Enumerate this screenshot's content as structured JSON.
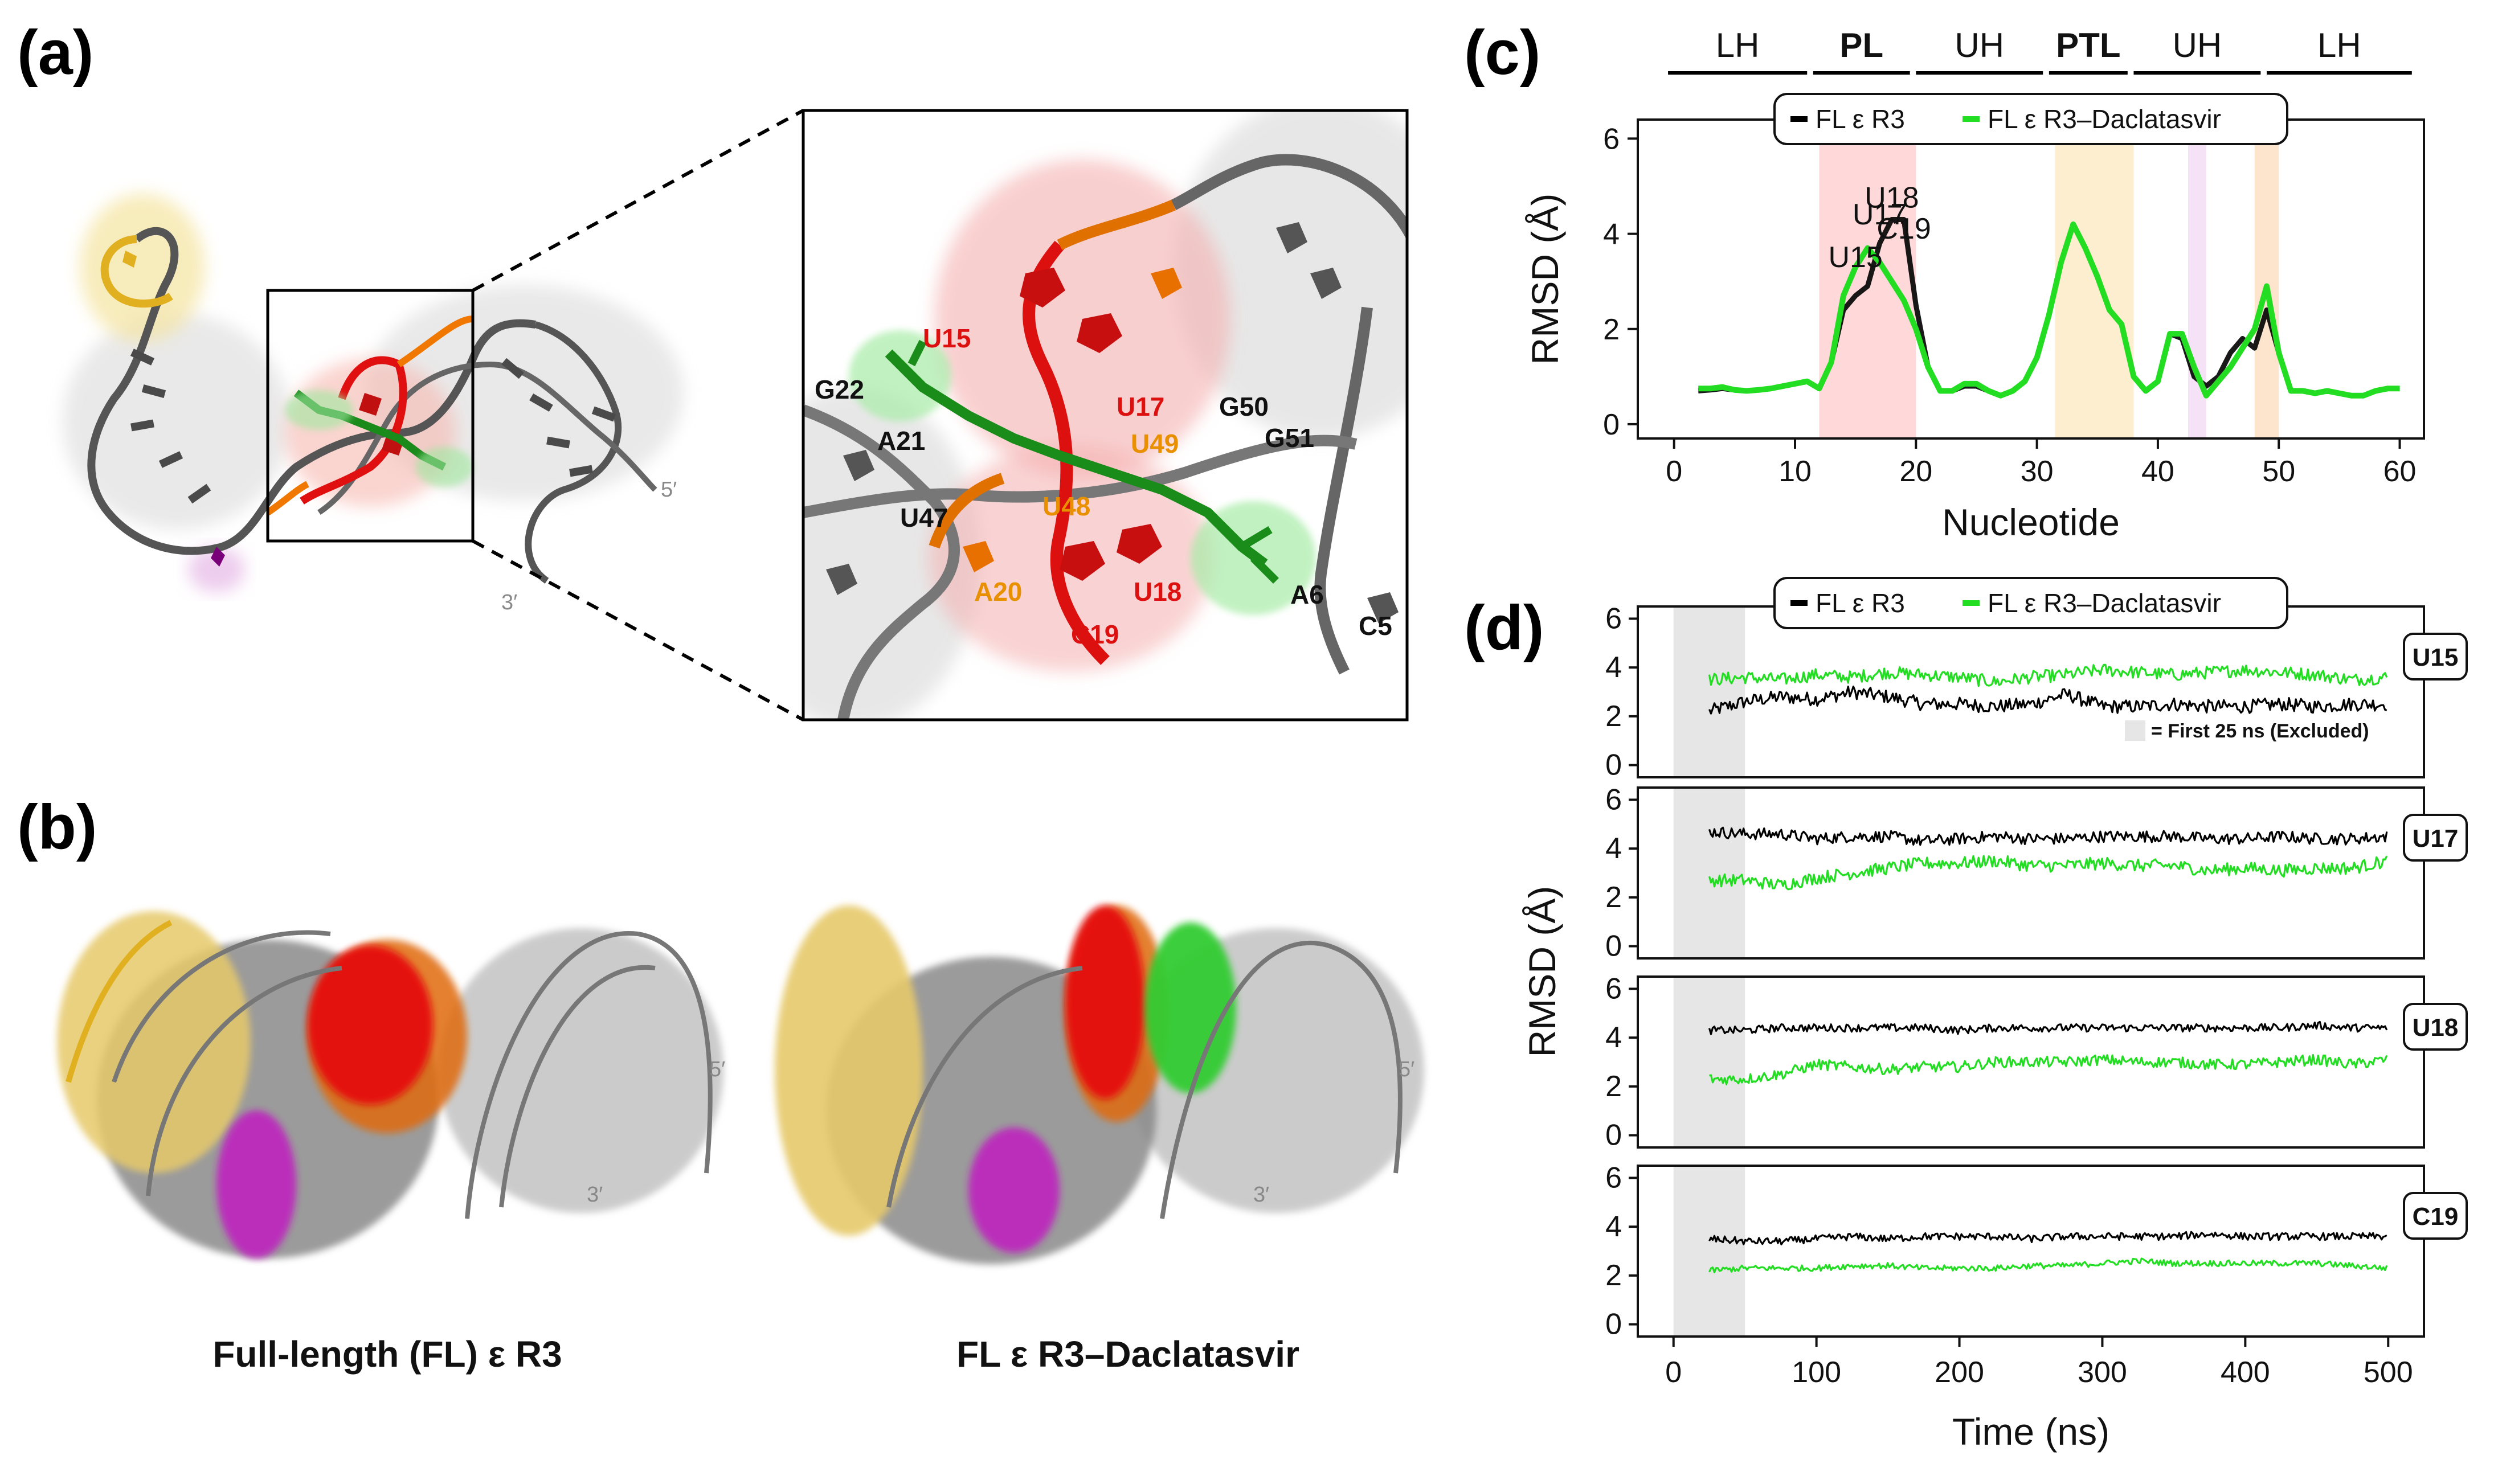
{
  "colors": {
    "fl": "#000000",
    "dacla": "#22dd22",
    "pl": "#ff2020",
    "ptl": "#f0b400",
    "exclude": "#e6e6e6"
  },
  "panel_a": {
    "label": "(a)",
    "end5": "5′",
    "end3": "3′",
    "zoom_labels": {
      "u15": "U15",
      "g22": "G22",
      "a21": "A21",
      "u47": "U47",
      "u17": "U17",
      "u49": "U49",
      "u48": "U48",
      "g50": "G50",
      "g51": "G51",
      "a20": "A20",
      "u18": "U18",
      "c19": "C19",
      "a6": "A6",
      "c5": "C5"
    }
  },
  "panel_b": {
    "label": "(b)",
    "caption_left": "Full-length (FL) ε R3",
    "caption_right": "FL ε R3–Daclatasvir",
    "end5_left": "5′",
    "end3_left": "3′",
    "end5_right": "5′",
    "end3_right": "3′"
  },
  "panel_c": {
    "label": "(c)"
  },
  "panel_d": {
    "label": "(d)",
    "exclude_note": "= First 25 ns (Excluded)"
  },
  "chart_data": [
    {
      "id": "c",
      "type": "line",
      "xlabel": "Nucleotide",
      "ylabel": "RMSD (Å)",
      "xlim": [
        -3,
        62
      ],
      "ylim": [
        -0.3,
        6.4
      ],
      "xticks": [
        0,
        10,
        20,
        30,
        40,
        50,
        60
      ],
      "yticks": [
        0,
        2,
        4,
        6
      ],
      "legend": [
        "FL ε R3",
        "FL ε R3–Daclatasvir"
      ],
      "legend_position": "top-center",
      "regions": [
        {
          "label": "LH",
          "start": -0.5,
          "end": 11
        },
        {
          "label": "PL",
          "start": 11.5,
          "end": 19.5
        },
        {
          "label": "UH",
          "start": 20,
          "end": 30.5
        },
        {
          "label": "PTL",
          "start": 31,
          "end": 37.5
        },
        {
          "label": "UH",
          "start": 38,
          "end": 48.5
        },
        {
          "label": "LH",
          "start": 49,
          "end": 61
        }
      ],
      "shaded": [
        {
          "start": 12,
          "end": 20,
          "color": "#ffd2d2"
        },
        {
          "start": 31.5,
          "end": 38,
          "color": "#fdebc8"
        },
        {
          "start": 42.5,
          "end": 44,
          "color": "#f5ddf5"
        },
        {
          "start": 48,
          "end": 50,
          "color": "#fde0c4"
        }
      ],
      "annotations": [
        {
          "text": "U15",
          "x": 15,
          "y": 3.3
        },
        {
          "text": "U17",
          "x": 17,
          "y": 4.2
        },
        {
          "text": "U18",
          "x": 18,
          "y": 4.55
        },
        {
          "text": "C19",
          "x": 19,
          "y": 3.9
        }
      ],
      "x": [
        2,
        3,
        4,
        5,
        6,
        7,
        8,
        9,
        10,
        11,
        12,
        13,
        14,
        15,
        16,
        17,
        18,
        19,
        20,
        21,
        22,
        23,
        24,
        25,
        26,
        27,
        28,
        29,
        30,
        31,
        32,
        33,
        34,
        35,
        36,
        37,
        38,
        39,
        40,
        41,
        42,
        43,
        44,
        45,
        46,
        47,
        48,
        49,
        50,
        51,
        52,
        53,
        54,
        55,
        56,
        57,
        58,
        59,
        60
      ],
      "series": [
        {
          "name": "FL ε R3",
          "values": [
            0.7,
            0.72,
            0.75,
            0.72,
            0.7,
            0.72,
            0.75,
            0.8,
            0.85,
            0.9,
            0.75,
            1.3,
            2.4,
            2.7,
            2.9,
            3.8,
            4.3,
            4.3,
            2.5,
            1.2,
            0.7,
            0.7,
            0.8,
            0.8,
            0.7,
            0.6,
            0.7,
            0.9,
            1.4,
            2.3,
            3.4,
            4.2,
            3.7,
            3.1,
            2.4,
            2.1,
            1.0,
            0.7,
            0.9,
            1.9,
            1.8,
            1.0,
            0.8,
            1.0,
            1.5,
            1.8,
            1.6,
            2.4,
            1.5,
            0.7,
            0.7,
            0.65,
            0.7,
            0.65,
            0.6,
            0.6,
            0.7,
            0.75,
            0.75
          ]
        },
        {
          "name": "FL ε R3–Daclatasvir",
          "values": [
            0.75,
            0.75,
            0.78,
            0.72,
            0.7,
            0.72,
            0.75,
            0.8,
            0.85,
            0.9,
            0.75,
            1.3,
            2.7,
            3.3,
            3.7,
            3.4,
            3.0,
            2.6,
            2.0,
            1.2,
            0.7,
            0.7,
            0.85,
            0.85,
            0.7,
            0.6,
            0.7,
            0.9,
            1.4,
            2.3,
            3.4,
            4.2,
            3.7,
            3.1,
            2.4,
            2.1,
            1.0,
            0.7,
            0.9,
            1.9,
            1.9,
            1.2,
            0.6,
            0.9,
            1.2,
            1.6,
            2.0,
            2.9,
            1.5,
            0.7,
            0.7,
            0.65,
            0.7,
            0.65,
            0.6,
            0.6,
            0.7,
            0.75,
            0.75
          ]
        }
      ]
    },
    {
      "id": "d",
      "type": "line",
      "xlabel": "Time (ns)",
      "ylabel": "RMSD (Å)",
      "xlim": [
        -25,
        525
      ],
      "ylim": [
        -0.5,
        6.5
      ],
      "xticks": [
        0,
        100,
        200,
        300,
        400,
        500
      ],
      "yticks": [
        0,
        2,
        4,
        6
      ],
      "legend": [
        "FL ε R3",
        "FL ε R3–Daclatasvir"
      ],
      "legend_position": "top-center",
      "excluded_range": [
        0,
        25
      ],
      "panels": [
        {
          "residue": "U15",
          "series": [
            {
              "name": "FL ε R3",
              "x": [
                25,
                50,
                75,
                100,
                125,
                150,
                175,
                200,
                225,
                250,
                275,
                300,
                325,
                350,
                375,
                400,
                425,
                450,
                475,
                500
              ],
              "values": [
                2.2,
                2.6,
                2.8,
                2.7,
                3.0,
                2.8,
                2.5,
                2.5,
                2.4,
                2.5,
                2.9,
                2.4,
                2.4,
                2.5,
                2.4,
                2.4,
                2.5,
                2.4,
                2.5,
                2.5
              ],
              "noise": 0.28
            },
            {
              "name": "FL ε R3–Daclatasvir",
              "x": [
                25,
                50,
                75,
                100,
                125,
                150,
                175,
                200,
                225,
                250,
                275,
                300,
                325,
                350,
                375,
                400,
                425,
                450,
                475,
                500
              ],
              "values": [
                3.5,
                3.6,
                3.5,
                3.7,
                3.6,
                3.8,
                3.7,
                3.6,
                3.4,
                3.6,
                3.7,
                3.9,
                3.8,
                3.7,
                3.8,
                3.9,
                3.8,
                3.7,
                3.5,
                3.6
              ],
              "noise": 0.26
            }
          ]
        },
        {
          "residue": "U17",
          "series": [
            {
              "name": "FL ε R3",
              "x": [
                25,
                50,
                75,
                100,
                125,
                150,
                175,
                200,
                225,
                250,
                275,
                300,
                325,
                350,
                375,
                400,
                425,
                450,
                475,
                500
              ],
              "values": [
                4.7,
                4.6,
                4.6,
                4.4,
                4.5,
                4.5,
                4.3,
                4.4,
                4.5,
                4.4,
                4.4,
                4.5,
                4.5,
                4.5,
                4.4,
                4.4,
                4.5,
                4.4,
                4.4,
                4.5
              ],
              "noise": 0.24
            },
            {
              "name": "FL ε R3–Daclatasvir",
              "x": [
                25,
                50,
                75,
                100,
                125,
                150,
                175,
                200,
                225,
                250,
                275,
                300,
                325,
                350,
                375,
                400,
                425,
                450,
                475,
                500
              ],
              "values": [
                2.7,
                2.7,
                2.5,
                2.8,
                3.0,
                3.2,
                3.4,
                3.4,
                3.5,
                3.3,
                3.3,
                3.4,
                3.3,
                3.3,
                3.1,
                3.2,
                3.1,
                3.2,
                3.2,
                3.5
              ],
              "noise": 0.26
            }
          ]
        },
        {
          "residue": "U18",
          "series": [
            {
              "name": "FL ε R3",
              "x": [
                25,
                50,
                75,
                100,
                125,
                150,
                175,
                200,
                225,
                250,
                275,
                300,
                325,
                350,
                375,
                400,
                425,
                450,
                475,
                500
              ],
              "values": [
                4.3,
                4.3,
                4.4,
                4.4,
                4.4,
                4.4,
                4.4,
                4.3,
                4.4,
                4.4,
                4.4,
                4.4,
                4.4,
                4.4,
                4.4,
                4.4,
                4.4,
                4.5,
                4.4,
                4.4
              ],
              "noise": 0.16
            },
            {
              "name": "FL ε R3–Daclatasvir",
              "x": [
                25,
                50,
                75,
                100,
                125,
                150,
                175,
                200,
                225,
                250,
                275,
                300,
                325,
                350,
                375,
                400,
                425,
                450,
                475,
                500
              ],
              "values": [
                2.3,
                2.3,
                2.5,
                2.9,
                2.8,
                2.7,
                2.8,
                2.8,
                3.0,
                3.0,
                3.0,
                3.1,
                3.0,
                3.0,
                2.9,
                2.9,
                3.0,
                3.1,
                2.9,
                3.1
              ],
              "noise": 0.22
            }
          ]
        },
        {
          "residue": "C19",
          "series": [
            {
              "name": "FL ε R3",
              "x": [
                25,
                50,
                75,
                100,
                125,
                150,
                175,
                200,
                225,
                250,
                275,
                300,
                325,
                350,
                375,
                400,
                425,
                450,
                475,
                500
              ],
              "values": [
                3.5,
                3.4,
                3.4,
                3.5,
                3.6,
                3.5,
                3.6,
                3.6,
                3.6,
                3.5,
                3.6,
                3.6,
                3.6,
                3.6,
                3.7,
                3.6,
                3.6,
                3.6,
                3.6,
                3.6
              ],
              "noise": 0.15
            },
            {
              "name": "FL ε R3–Daclatasvir",
              "x": [
                25,
                50,
                75,
                100,
                125,
                150,
                175,
                200,
                225,
                250,
                275,
                300,
                325,
                350,
                375,
                400,
                425,
                450,
                475,
                500
              ],
              "values": [
                2.2,
                2.3,
                2.3,
                2.3,
                2.4,
                2.4,
                2.3,
                2.3,
                2.3,
                2.4,
                2.4,
                2.5,
                2.6,
                2.5,
                2.5,
                2.5,
                2.5,
                2.5,
                2.4,
                2.3
              ],
              "noise": 0.12
            }
          ]
        }
      ]
    }
  ]
}
